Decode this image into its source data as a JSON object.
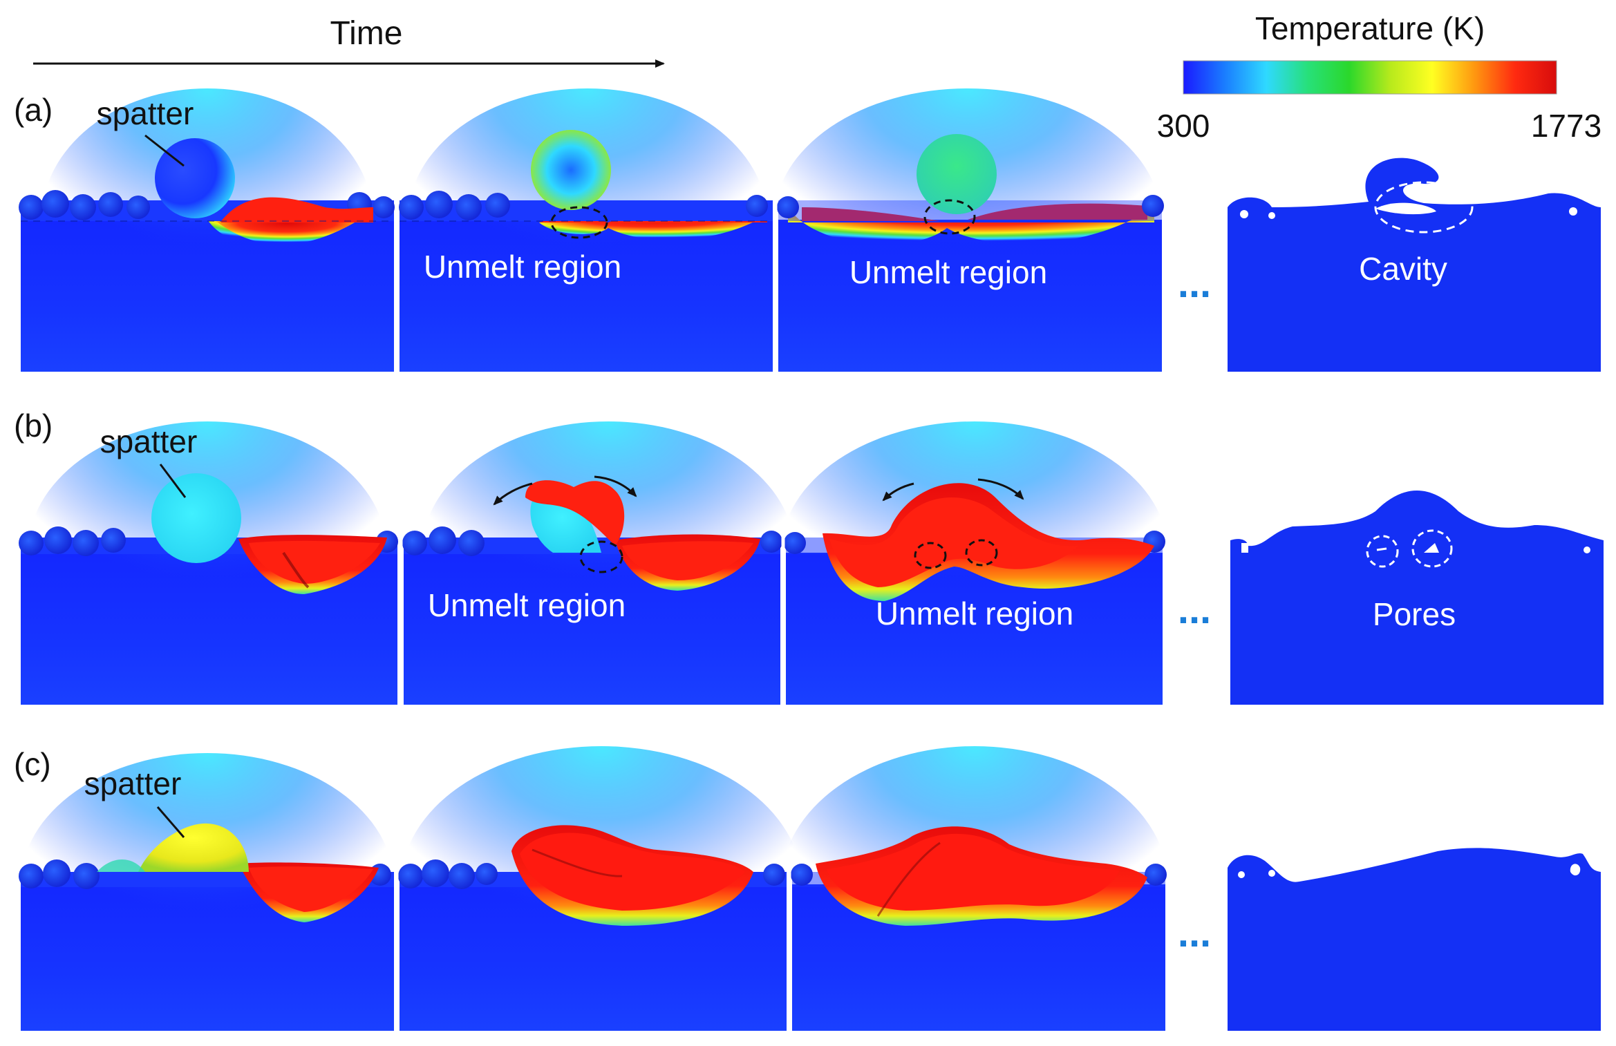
{
  "header": {
    "time_label": "Time",
    "colorbar": {
      "title": "Temperature (K)",
      "min_label": "300",
      "max_label": "1773",
      "stops": [
        "#1a1aff",
        "#1a7dff",
        "#2fd9ff",
        "#27e07a",
        "#2bd82b",
        "#b8ea1c",
        "#ffff22",
        "#ff9a10",
        "#ff2a10",
        "#d70c0c"
      ]
    }
  },
  "rows": [
    {
      "tag": "(a)",
      "spatter_label": "spatter",
      "annotations": [
        "Unmelt region",
        "Unmelt region",
        "Cavity"
      ],
      "ellipsis": "..."
    },
    {
      "tag": "(b)",
      "spatter_label": "spatter",
      "annotations": [
        "Unmelt region",
        "Unmelt region",
        "Pores"
      ],
      "ellipsis": "..."
    },
    {
      "tag": "(c)",
      "spatter_label": "spatter",
      "annotations": [],
      "ellipsis": "..."
    }
  ],
  "colors": {
    "substrate_top": "#1428ff",
    "substrate_mid": "#1e6cff",
    "substrate_glow": "#3ad8ff",
    "hot": "#ff1a10",
    "final_blue": "#1430f5"
  }
}
